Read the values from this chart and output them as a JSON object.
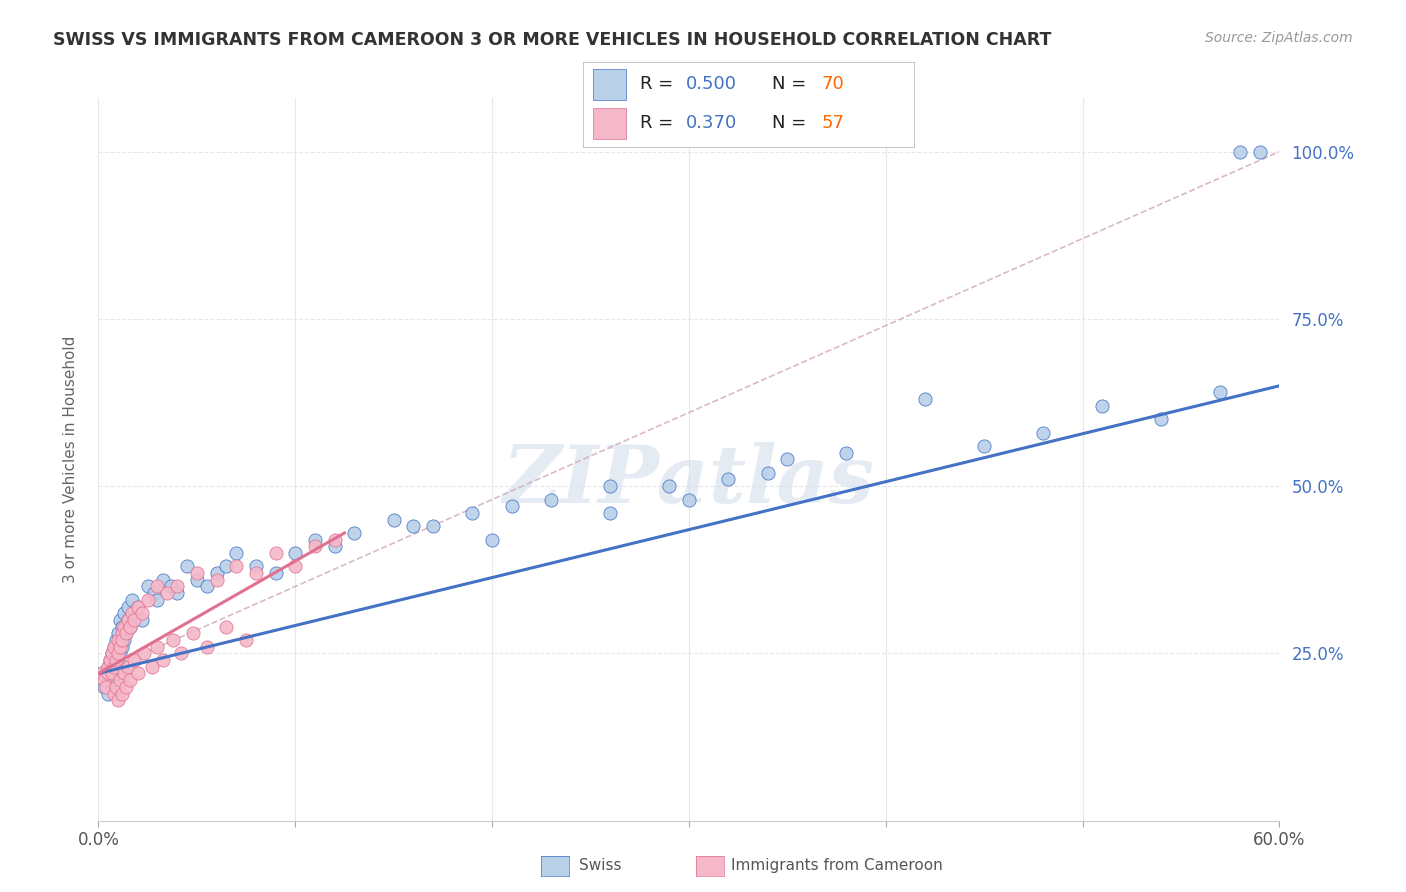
{
  "title": "SWISS VS IMMIGRANTS FROM CAMEROON 3 OR MORE VEHICLES IN HOUSEHOLD CORRELATION CHART",
  "source": "Source: ZipAtlas.com",
  "ylabel": "3 or more Vehicles in Household",
  "xmin": 0.0,
  "xmax": 0.6,
  "ymin": 0.0,
  "ymax": 1.08,
  "xtick_labels_shown": [
    "0.0%",
    "60.0%"
  ],
  "xtick_values_shown": [
    0.0,
    0.6
  ],
  "xtick_minor_values": [
    0.1,
    0.2,
    0.3,
    0.4,
    0.5
  ],
  "ytick_labels": [
    "25.0%",
    "50.0%",
    "75.0%",
    "100.0%"
  ],
  "ytick_values": [
    0.25,
    0.5,
    0.75,
    1.0
  ],
  "swiss_color": "#b8d0e8",
  "cameroon_color": "#f5b8c8",
  "swiss_line_color": "#4472c4",
  "cameroon_line_color": "#e07090",
  "dashed_line_color": "#d0a8b8",
  "legend_r_color": "#4472c4",
  "legend_n_color": "#ff6600",
  "swiss_R": "0.500",
  "swiss_N": "70",
  "cameroon_R": "0.370",
  "cameroon_N": "57",
  "swiss_x": [
    0.002,
    0.003,
    0.004,
    0.005,
    0.005,
    0.006,
    0.006,
    0.007,
    0.007,
    0.008,
    0.008,
    0.009,
    0.009,
    0.01,
    0.01,
    0.011,
    0.011,
    0.012,
    0.012,
    0.013,
    0.013,
    0.014,
    0.015,
    0.015,
    0.016,
    0.017,
    0.018,
    0.02,
    0.022,
    0.025,
    0.028,
    0.03,
    0.033,
    0.037,
    0.04,
    0.045,
    0.05,
    0.055,
    0.06,
    0.065,
    0.07,
    0.08,
    0.09,
    0.1,
    0.11,
    0.12,
    0.13,
    0.15,
    0.17,
    0.19,
    0.21,
    0.23,
    0.26,
    0.29,
    0.32,
    0.35,
    0.38,
    0.42,
    0.45,
    0.48,
    0.51,
    0.54,
    0.57,
    0.3,
    0.34,
    0.26,
    0.2,
    0.16,
    0.58,
    0.59
  ],
  "swiss_y": [
    0.22,
    0.2,
    0.21,
    0.23,
    0.19,
    0.22,
    0.24,
    0.21,
    0.25,
    0.23,
    0.26,
    0.22,
    0.27,
    0.24,
    0.28,
    0.25,
    0.3,
    0.26,
    0.29,
    0.27,
    0.31,
    0.28,
    0.3,
    0.32,
    0.29,
    0.33,
    0.31,
    0.32,
    0.3,
    0.35,
    0.34,
    0.33,
    0.36,
    0.35,
    0.34,
    0.38,
    0.36,
    0.35,
    0.37,
    0.38,
    0.4,
    0.38,
    0.37,
    0.4,
    0.42,
    0.41,
    0.43,
    0.45,
    0.44,
    0.46,
    0.47,
    0.48,
    0.5,
    0.5,
    0.51,
    0.54,
    0.55,
    0.63,
    0.56,
    0.58,
    0.62,
    0.6,
    0.64,
    0.48,
    0.52,
    0.46,
    0.42,
    0.44,
    1.0,
    1.0
  ],
  "cameroon_x": [
    0.002,
    0.003,
    0.004,
    0.005,
    0.005,
    0.006,
    0.007,
    0.007,
    0.008,
    0.008,
    0.009,
    0.01,
    0.01,
    0.011,
    0.012,
    0.012,
    0.013,
    0.014,
    0.015,
    0.016,
    0.017,
    0.018,
    0.02,
    0.022,
    0.025,
    0.03,
    0.035,
    0.04,
    0.05,
    0.06,
    0.07,
    0.08,
    0.09,
    0.1,
    0.11,
    0.12,
    0.008,
    0.009,
    0.01,
    0.011,
    0.012,
    0.013,
    0.014,
    0.015,
    0.016,
    0.018,
    0.02,
    0.023,
    0.027,
    0.03,
    0.033,
    0.038,
    0.042,
    0.048,
    0.055,
    0.065,
    0.075
  ],
  "cameroon_y": [
    0.22,
    0.21,
    0.2,
    0.23,
    0.22,
    0.24,
    0.22,
    0.25,
    0.23,
    0.26,
    0.24,
    0.25,
    0.27,
    0.26,
    0.28,
    0.27,
    0.29,
    0.28,
    0.3,
    0.29,
    0.31,
    0.3,
    0.32,
    0.31,
    0.33,
    0.35,
    0.34,
    0.35,
    0.37,
    0.36,
    0.38,
    0.37,
    0.4,
    0.38,
    0.41,
    0.42,
    0.19,
    0.2,
    0.18,
    0.21,
    0.19,
    0.22,
    0.2,
    0.23,
    0.21,
    0.24,
    0.22,
    0.25,
    0.23,
    0.26,
    0.24,
    0.27,
    0.25,
    0.28,
    0.26,
    0.29,
    0.27
  ],
  "watermark": "ZIPatlas",
  "background_color": "#ffffff",
  "grid_color": "#e8e8e8"
}
